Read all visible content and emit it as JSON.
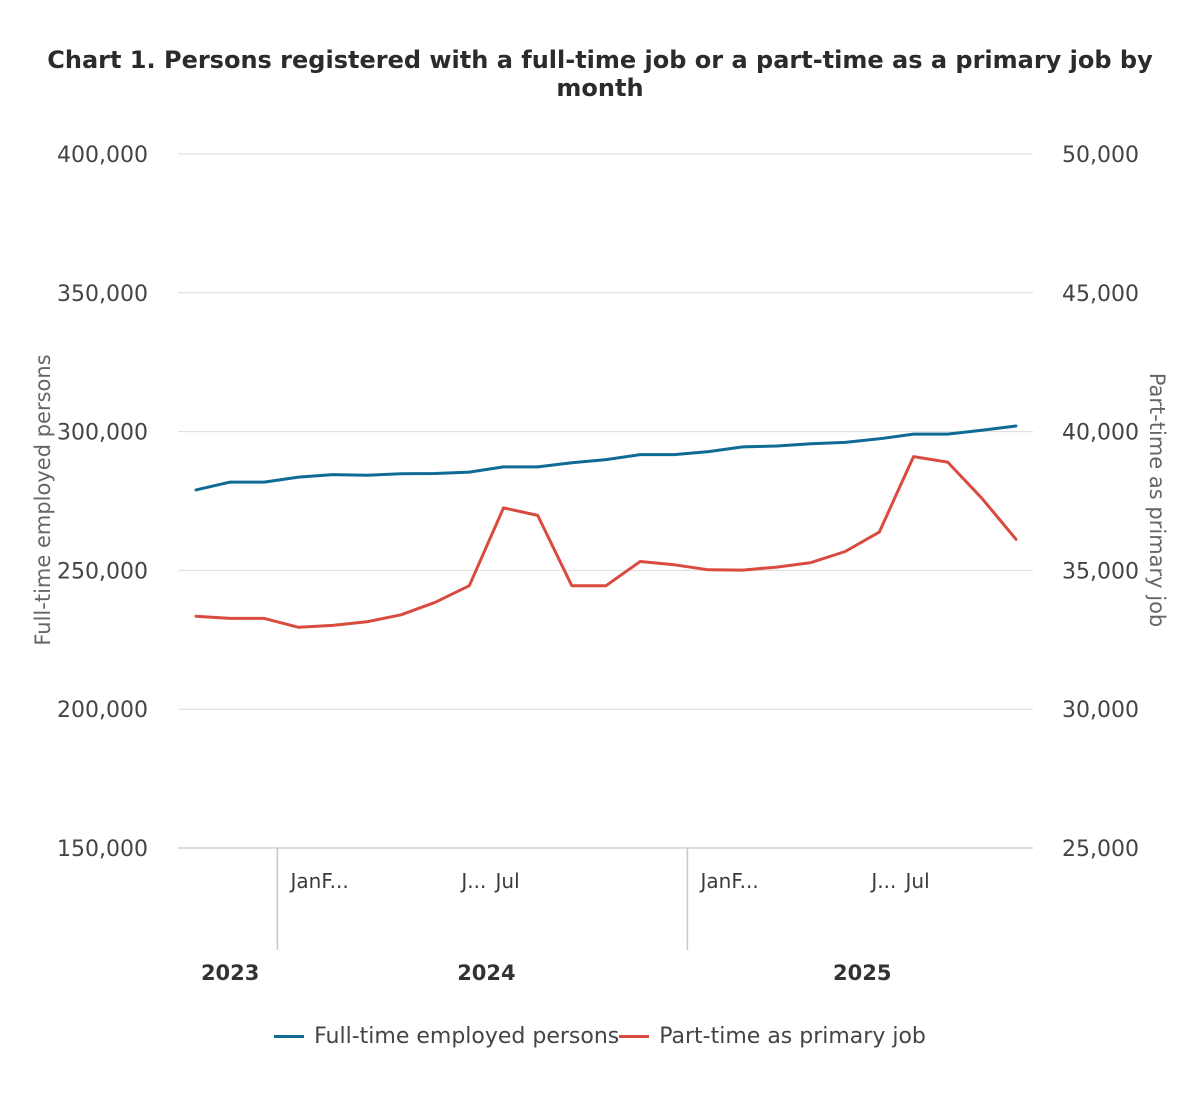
{
  "chart_data": {
    "type": "line",
    "title": "Chart 1. Persons registered with a full-time job or a part-time as a primary job by month",
    "ylabel": "Full-time employed persons",
    "y2label": "Part-time as primary job",
    "ylim": [
      150000,
      400000
    ],
    "y2lim": [
      25000,
      50000
    ],
    "yticks": [
      "400,000",
      "350,000",
      "300,000",
      "250,000",
      "200,000",
      "150,000"
    ],
    "y2ticks": [
      "50,000",
      "45,000",
      "40,000",
      "35,000",
      "30,000",
      "25,000"
    ],
    "x_tick_labels": [
      {
        "index": 3,
        "text": "JanF..."
      },
      {
        "index": 8,
        "text": "J..."
      },
      {
        "index": 9,
        "text": "Jul"
      },
      {
        "index": 15,
        "text": "JanF..."
      },
      {
        "index": 20,
        "text": "J..."
      },
      {
        "index": 21,
        "text": "Jul"
      }
    ],
    "years": [
      {
        "label": "2023",
        "center_index": 1
      },
      {
        "label": "2024",
        "center_index": 8.5
      },
      {
        "label": "2025",
        "center_index": 19.5
      }
    ],
    "year_separators": [
      2.5,
      14.5
    ],
    "points": 25,
    "series": [
      {
        "name": "Full-time employed persons",
        "axis": "left",
        "color": "#0e6b96",
        "values": [
          279000,
          281800,
          281800,
          283600,
          284500,
          284300,
          284800,
          284900,
          285400,
          287300,
          287300,
          288800,
          289900,
          291700,
          291700,
          292800,
          294500,
          294800,
          295600,
          296100,
          297400,
          299100,
          299100,
          300500,
          302000
        ]
      },
      {
        "name": "Part-time as primary job",
        "axis": "right",
        "color": "#d94b3f",
        "values": [
          33350,
          33270,
          33270,
          32950,
          33020,
          33150,
          33400,
          33850,
          34450,
          37250,
          36980,
          34450,
          34450,
          35320,
          35200,
          35020,
          35010,
          35120,
          35280,
          35680,
          36380,
          39100,
          38900,
          37600,
          36120
        ]
      }
    ]
  },
  "legend": {
    "full_time": "Full-time employed persons",
    "part_time": "Part-time as primary job"
  }
}
